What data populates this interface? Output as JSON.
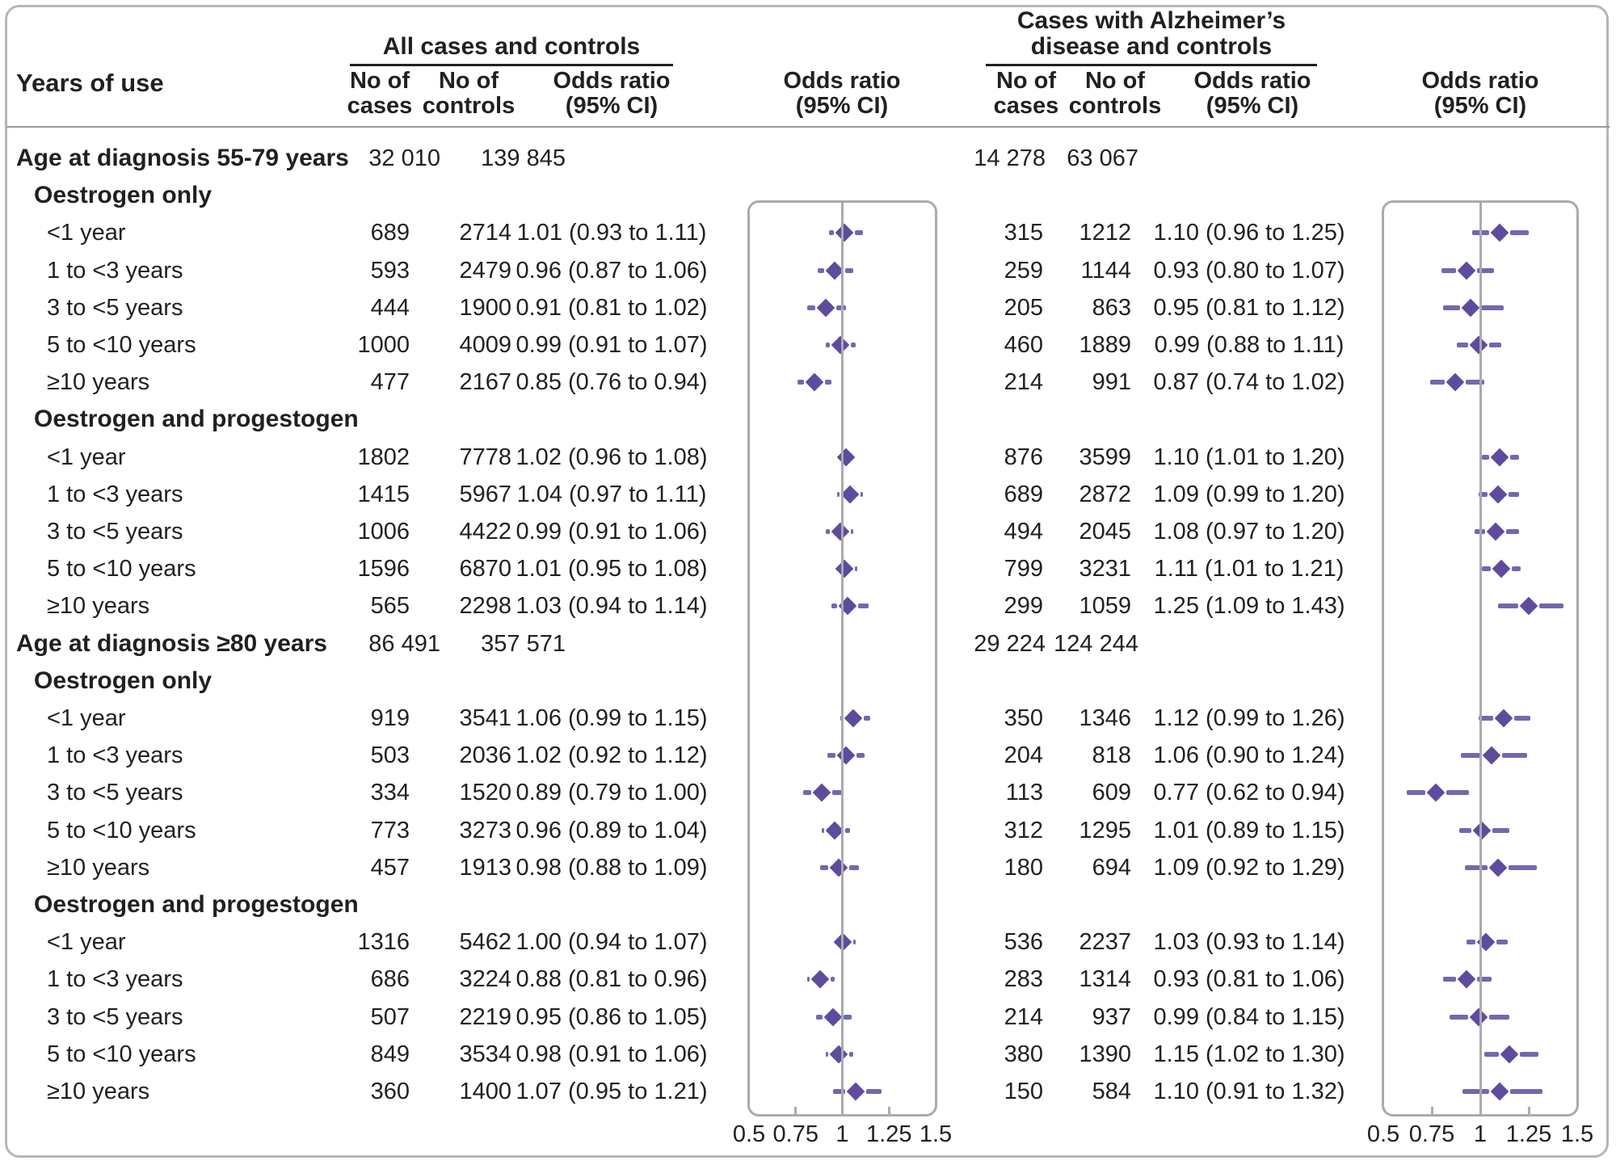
{
  "header": {
    "row_label": "Years of use",
    "group_a": {
      "title": [
        "All cases and controls"
      ],
      "col1": [
        "No of",
        "cases"
      ],
      "col2": [
        "No of",
        "controls"
      ],
      "col3": [
        "Odds ratio",
        "(95% CI)"
      ],
      "plot": [
        "Odds ratio",
        "(95% CI)"
      ]
    },
    "group_b": {
      "title": [
        "Cases with Alzheimer’s",
        "disease and controls"
      ],
      "col1": [
        "No of",
        "cases"
      ],
      "col2": [
        "No of",
        "controls"
      ],
      "col3": [
        "Odds ratio",
        "(95% CI)"
      ],
      "plot": [
        "Odds ratio",
        "(95% CI)"
      ]
    }
  },
  "colors": {
    "diamond": "#5e4b9d",
    "ci_line": "#7467ae",
    "ref_line": "#a9abae",
    "panel_border": "#a9abae",
    "text": "#231f20"
  },
  "chart_data": {
    "type": "forest",
    "title": "",
    "xlim": [
      0.5,
      1.5
    ],
    "ref_line": 1,
    "axis_ticks": {
      "labels": [
        "0.5",
        "0.75",
        "1",
        "1.25",
        "1.5"
      ],
      "values": [
        0.5,
        0.75,
        1,
        1.25,
        1.5
      ],
      "minor_tick_values": [
        0.75,
        1.25
      ]
    },
    "group_names": [
      "All cases and controls",
      "Cases with Alzheimer’s disease and controls"
    ],
    "rows": [
      {
        "level": 0,
        "label": "Age at diagnosis 55-79 years",
        "a": {
          "cases": "32 010",
          "controls": "139 845"
        },
        "b": {
          "cases": "14 278",
          "controls": "63 067"
        }
      },
      {
        "level": 1,
        "label": "Oestrogen only"
      },
      {
        "level": 2,
        "label": "<1 year",
        "a": {
          "cases": "689",
          "controls": "2714",
          "or_text": "1.01 (0.93 to 1.11)",
          "or": 1.01,
          "lo": 0.93,
          "hi": 1.11
        },
        "b": {
          "cases": "315",
          "controls": "1212",
          "or_text": "1.10 (0.96 to 1.25)",
          "or": 1.1,
          "lo": 0.96,
          "hi": 1.25
        }
      },
      {
        "level": 2,
        "label": "1 to <3 years",
        "a": {
          "cases": "593",
          "controls": "2479",
          "or_text": "0.96 (0.87 to 1.06)",
          "or": 0.96,
          "lo": 0.87,
          "hi": 1.06
        },
        "b": {
          "cases": "259",
          "controls": "1144",
          "or_text": "0.93 (0.80 to 1.07)",
          "or": 0.93,
          "lo": 0.8,
          "hi": 1.07
        }
      },
      {
        "level": 2,
        "label": "3 to <5 years",
        "a": {
          "cases": "444",
          "controls": "1900",
          "or_text": "0.91 (0.81 to 1.02)",
          "or": 0.91,
          "lo": 0.81,
          "hi": 1.02
        },
        "b": {
          "cases": "205",
          "controls": "863",
          "or_text": "0.95 (0.81 to 1.12)",
          "or": 0.95,
          "lo": 0.81,
          "hi": 1.12
        }
      },
      {
        "level": 2,
        "label": "5 to <10 years",
        "a": {
          "cases": "1000",
          "controls": "4009",
          "or_text": "0.99 (0.91 to 1.07)",
          "or": 0.99,
          "lo": 0.91,
          "hi": 1.07
        },
        "b": {
          "cases": "460",
          "controls": "1889",
          "or_text": "0.99 (0.88 to 1.11)",
          "or": 0.99,
          "lo": 0.88,
          "hi": 1.11
        }
      },
      {
        "level": 2,
        "label": "≥10 years",
        "a": {
          "cases": "477",
          "controls": "2167",
          "or_text": "0.85 (0.76 to 0.94)",
          "or": 0.85,
          "lo": 0.76,
          "hi": 0.94
        },
        "b": {
          "cases": "214",
          "controls": "991",
          "or_text": "0.87 (0.74 to 1.02)",
          "or": 0.87,
          "lo": 0.74,
          "hi": 1.02
        }
      },
      {
        "level": 1,
        "label": "Oestrogen and progestogen"
      },
      {
        "level": 2,
        "label": "<1 year",
        "a": {
          "cases": "1802",
          "controls": "7778",
          "or_text": "1.02 (0.96 to 1.08)",
          "or": 1.02,
          "lo": 0.96,
          "hi": 1.08
        },
        "b": {
          "cases": "876",
          "controls": "3599",
          "or_text": "1.10 (1.01 to 1.20)",
          "or": 1.1,
          "lo": 1.01,
          "hi": 1.2
        }
      },
      {
        "level": 2,
        "label": "1 to <3 years",
        "a": {
          "cases": "1415",
          "controls": "5967",
          "or_text": "1.04 (0.97 to 1.11)",
          "or": 1.04,
          "lo": 0.97,
          "hi": 1.11
        },
        "b": {
          "cases": "689",
          "controls": "2872",
          "or_text": "1.09 (0.99 to 1.20)",
          "or": 1.09,
          "lo": 0.99,
          "hi": 1.2
        }
      },
      {
        "level": 2,
        "label": "3 to <5 years",
        "a": {
          "cases": "1006",
          "controls": "4422",
          "or_text": "0.99 (0.91 to 1.06)",
          "or": 0.99,
          "lo": 0.91,
          "hi": 1.06
        },
        "b": {
          "cases": "494",
          "controls": "2045",
          "or_text": "1.08 (0.97 to 1.20)",
          "or": 1.08,
          "lo": 0.97,
          "hi": 1.2
        }
      },
      {
        "level": 2,
        "label": "5 to <10 years",
        "a": {
          "cases": "1596",
          "controls": "6870",
          "or_text": "1.01 (0.95 to 1.08)",
          "or": 1.01,
          "lo": 0.95,
          "hi": 1.08
        },
        "b": {
          "cases": "799",
          "controls": "3231",
          "or_text": "1.11 (1.01 to 1.21)",
          "or": 1.11,
          "lo": 1.01,
          "hi": 1.21
        }
      },
      {
        "level": 2,
        "label": "≥10 years",
        "a": {
          "cases": "565",
          "controls": "2298",
          "or_text": "1.03 (0.94 to 1.14)",
          "or": 1.03,
          "lo": 0.94,
          "hi": 1.14
        },
        "b": {
          "cases": "299",
          "controls": "1059",
          "or_text": "1.25 (1.09 to 1.43)",
          "or": 1.25,
          "lo": 1.09,
          "hi": 1.43
        }
      },
      {
        "level": 0,
        "label": "Age at diagnosis ≥80 years",
        "a": {
          "cases": "86 491",
          "controls": "357 571"
        },
        "b": {
          "cases": "29 224",
          "controls": "124 244"
        }
      },
      {
        "level": 1,
        "label": "Oestrogen only"
      },
      {
        "level": 2,
        "label": "<1 year",
        "a": {
          "cases": "919",
          "controls": "3541",
          "or_text": "1.06 (0.99 to 1.15)",
          "or": 1.06,
          "lo": 0.99,
          "hi": 1.15
        },
        "b": {
          "cases": "350",
          "controls": "1346",
          "or_text": "1.12 (0.99 to 1.26)",
          "or": 1.12,
          "lo": 0.99,
          "hi": 1.26
        }
      },
      {
        "level": 2,
        "label": "1 to <3 years",
        "a": {
          "cases": "503",
          "controls": "2036",
          "or_text": "1.02 (0.92 to 1.12)",
          "or": 1.02,
          "lo": 0.92,
          "hi": 1.12
        },
        "b": {
          "cases": "204",
          "controls": "818",
          "or_text": "1.06 (0.90 to 1.24)",
          "or": 1.06,
          "lo": 0.9,
          "hi": 1.24
        }
      },
      {
        "level": 2,
        "label": "3 to <5 years",
        "a": {
          "cases": "334",
          "controls": "1520",
          "or_text": "0.89 (0.79 to 1.00)",
          "or": 0.89,
          "lo": 0.79,
          "hi": 1.0
        },
        "b": {
          "cases": "113",
          "controls": "609",
          "or_text": "0.77 (0.62 to 0.94)",
          "or": 0.77,
          "lo": 0.62,
          "hi": 0.94
        }
      },
      {
        "level": 2,
        "label": "5 to <10 years",
        "a": {
          "cases": "773",
          "controls": "3273",
          "or_text": "0.96 (0.89 to 1.04)",
          "or": 0.96,
          "lo": 0.89,
          "hi": 1.04
        },
        "b": {
          "cases": "312",
          "controls": "1295",
          "or_text": "1.01 (0.89 to 1.15)",
          "or": 1.01,
          "lo": 0.89,
          "hi": 1.15
        }
      },
      {
        "level": 2,
        "label": "≥10 years",
        "a": {
          "cases": "457",
          "controls": "1913",
          "or_text": "0.98 (0.88 to 1.09)",
          "or": 0.98,
          "lo": 0.88,
          "hi": 1.09
        },
        "b": {
          "cases": "180",
          "controls": "694",
          "or_text": "1.09 (0.92 to 1.29)",
          "or": 1.09,
          "lo": 0.92,
          "hi": 1.29
        }
      },
      {
        "level": 1,
        "label": "Oestrogen and progestogen"
      },
      {
        "level": 2,
        "label": "<1 year",
        "a": {
          "cases": "1316",
          "controls": "5462",
          "or_text": "1.00 (0.94 to 1.07)",
          "or": 1.0,
          "lo": 0.94,
          "hi": 1.07
        },
        "b": {
          "cases": "536",
          "controls": "2237",
          "or_text": "1.03 (0.93 to 1.14)",
          "or": 1.03,
          "lo": 0.93,
          "hi": 1.14
        }
      },
      {
        "level": 2,
        "label": "1 to <3 years",
        "a": {
          "cases": "686",
          "controls": "3224",
          "or_text": "0.88 (0.81 to 0.96)",
          "or": 0.88,
          "lo": 0.81,
          "hi": 0.96
        },
        "b": {
          "cases": "283",
          "controls": "1314",
          "or_text": "0.93 (0.81 to 1.06)",
          "or": 0.93,
          "lo": 0.81,
          "hi": 1.06
        }
      },
      {
        "level": 2,
        "label": "3 to <5 years",
        "a": {
          "cases": "507",
          "controls": "2219",
          "or_text": "0.95 (0.86 to 1.05)",
          "or": 0.95,
          "lo": 0.86,
          "hi": 1.05
        },
        "b": {
          "cases": "214",
          "controls": "937",
          "or_text": "0.99 (0.84 to 1.15)",
          "or": 0.99,
          "lo": 0.84,
          "hi": 1.15
        }
      },
      {
        "level": 2,
        "label": "5 to <10 years",
        "a": {
          "cases": "849",
          "controls": "3534",
          "or_text": "0.98 (0.91 to 1.06)",
          "or": 0.98,
          "lo": 0.91,
          "hi": 1.06
        },
        "b": {
          "cases": "380",
          "controls": "1390",
          "or_text": "1.15 (1.02 to 1.30)",
          "or": 1.15,
          "lo": 1.02,
          "hi": 1.3
        }
      },
      {
        "level": 2,
        "label": "≥10 years",
        "a": {
          "cases": "360",
          "controls": "1400",
          "or_text": "1.07 (0.95 to 1.21)",
          "or": 1.07,
          "lo": 0.95,
          "hi": 1.21
        },
        "b": {
          "cases": "150",
          "controls": "584",
          "or_text": "1.10 (0.91 to 1.32)",
          "or": 1.1,
          "lo": 0.91,
          "hi": 1.32
        }
      }
    ]
  }
}
